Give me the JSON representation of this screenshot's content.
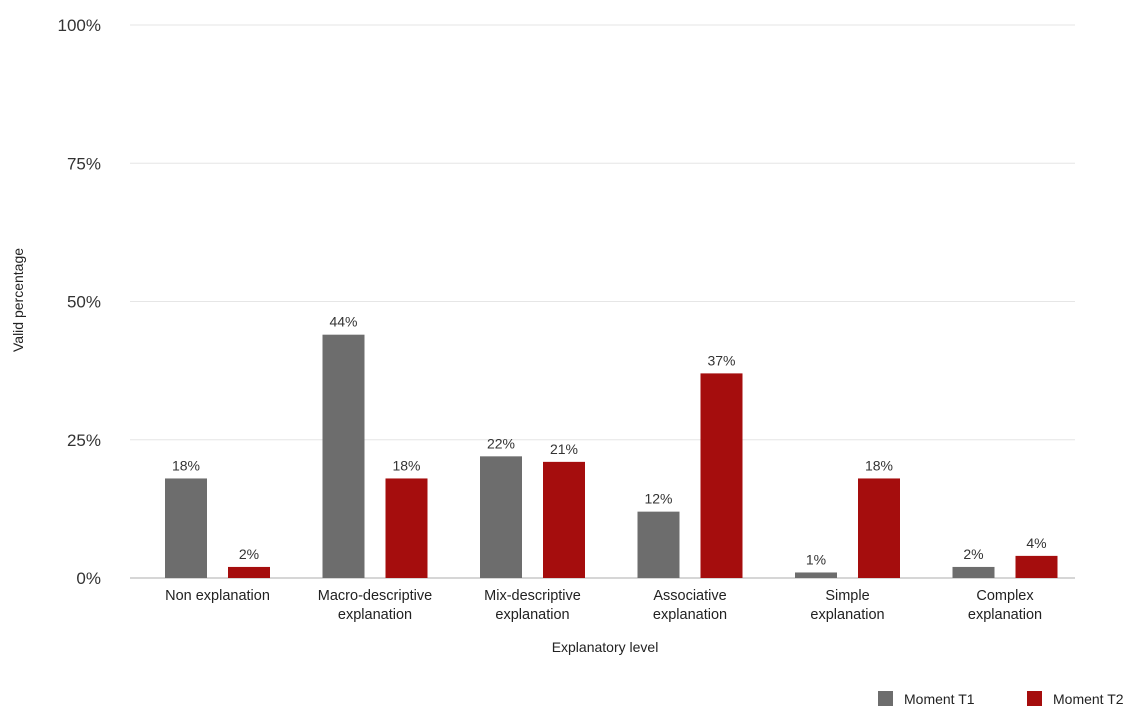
{
  "chart_data": {
    "type": "bar",
    "xlabel": "Explanatory level",
    "ylabel": "Valid percentage",
    "ylim": [
      0,
      100
    ],
    "yticks": [
      0,
      25,
      50,
      75,
      100
    ],
    "ytick_labels": [
      "0%",
      "25%",
      "50%",
      "75%",
      "100%"
    ],
    "grid": true,
    "legend_position": "bottom-right",
    "categories": [
      [
        "Non explanation"
      ],
      [
        "Macro-descriptive",
        "explanation"
      ],
      [
        "Mix-descriptive",
        "explanation"
      ],
      [
        "Associative",
        "explanation"
      ],
      [
        "Simple",
        "explanation"
      ],
      [
        "Complex",
        "explanation"
      ]
    ],
    "series": [
      {
        "name": "Moment T1",
        "color": "#6d6d6d",
        "values": [
          18,
          44,
          22,
          12,
          1,
          2
        ],
        "labels": [
          "18%",
          "44%",
          "22%",
          "12%",
          "1%",
          "2%"
        ]
      },
      {
        "name": "Moment T2",
        "color": "#a50d0d",
        "values": [
          2,
          18,
          21,
          37,
          18,
          4
        ],
        "labels": [
          "2%",
          "18%",
          "21%",
          "37%",
          "18%",
          "4%"
        ]
      }
    ]
  }
}
